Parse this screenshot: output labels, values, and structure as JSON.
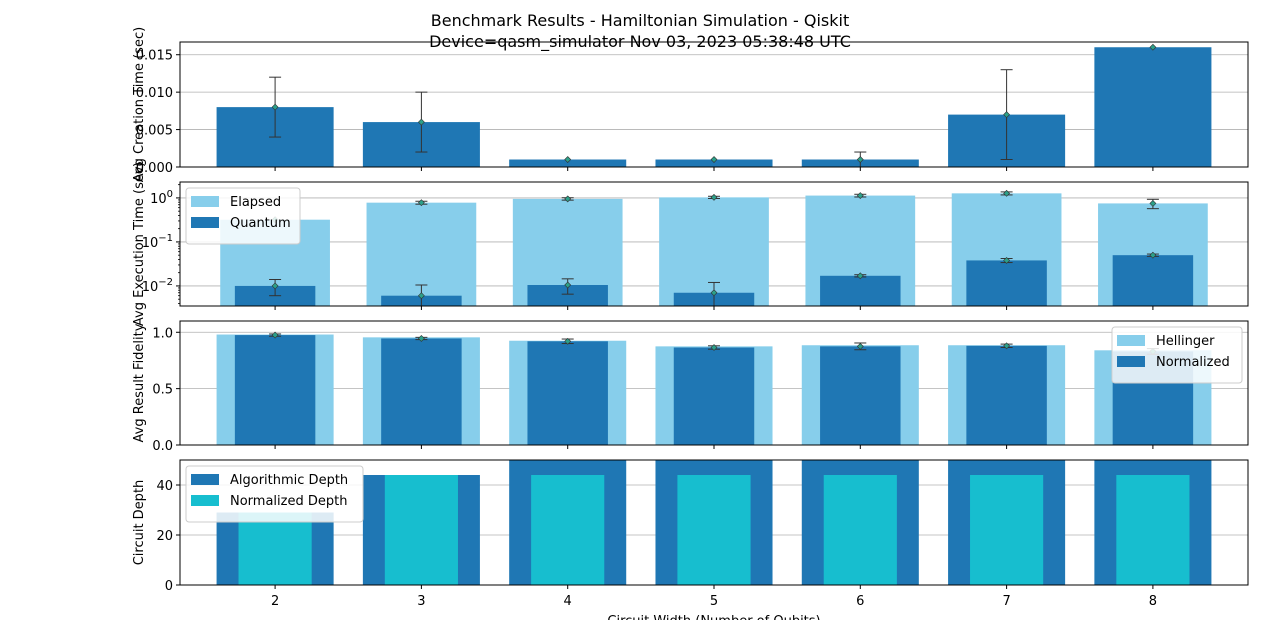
{
  "title": "Benchmark Results - Hamiltonian Simulation - Qiskit",
  "subtitle": "Device=qasm_simulator  Nov 03, 2023 05:38:48 UTC",
  "colors": {
    "dark_blue": "#1f77b4",
    "light_blue": "#87ceeb",
    "cyan": "#17becf",
    "grid": "#b0b0b0",
    "marker": "#2ca089"
  },
  "chart_data": [
    {
      "id": "creation",
      "type": "bar",
      "ylabel": "Avg Creation Time (sec)",
      "scale": "linear",
      "ylim": [
        0,
        0.0167
      ],
      "yticks": [
        0,
        0.005,
        0.01,
        0.015
      ],
      "ytick_labels": [
        "0.000",
        "0.005",
        "0.010",
        "0.015"
      ],
      "grid": true,
      "x": [
        2,
        3,
        4,
        5,
        6,
        7,
        8
      ],
      "series": [
        {
          "values": [
            0.008,
            0.006,
            0.001,
            0.001,
            0.001,
            0.007,
            0.016
          ],
          "err": [
            0.004,
            0.004,
            0.0,
            0.0,
            0.001,
            0.006,
            0.0
          ],
          "color": "#1f77b4",
          "width": 0.8
        }
      ]
    },
    {
      "id": "execution",
      "type": "bar",
      "ylabel": "Avg Execution Time (sec)",
      "scale": "log",
      "ylim": [
        0.0035,
        2.3
      ],
      "yticks": [
        0.01,
        0.1,
        1
      ],
      "ytick_labels": [
        [
          "10",
          "−2"
        ],
        [
          "10",
          "−1"
        ],
        [
          "10",
          "0"
        ]
      ],
      "grid": true,
      "legend": "top-left",
      "x": [
        2,
        3,
        4,
        5,
        6,
        7,
        8
      ],
      "series": [
        {
          "name": "Elapsed",
          "values": [
            0.32,
            0.78,
            0.95,
            1.03,
            1.13,
            1.27,
            0.75
          ],
          "err": [
            0.0,
            0.06,
            0.06,
            0.06,
            0.08,
            0.1,
            0.18
          ],
          "color": "#87ceeb",
          "width": 0.75
        },
        {
          "name": "Quantum",
          "values": [
            0.01,
            0.006,
            0.0105,
            0.007,
            0.017,
            0.038,
            0.05
          ],
          "err": [
            0.004,
            0.0045,
            0.004,
            0.005,
            0.001,
            0.004,
            0.003
          ],
          "color": "#1f77b4",
          "width": 0.55
        }
      ]
    },
    {
      "id": "fidelity",
      "type": "bar",
      "ylabel": "Avg Result Fidelity",
      "scale": "linear",
      "ylim": [
        0,
        1.1
      ],
      "yticks": [
        0,
        0.5,
        1.0
      ],
      "ytick_labels": [
        "0.0",
        "0.5",
        "1.0"
      ],
      "grid": true,
      "legend": "top-right",
      "x": [
        2,
        3,
        4,
        5,
        6,
        7,
        8
      ],
      "series": [
        {
          "name": "Hellinger",
          "values": [
            0.98,
            0.955,
            0.925,
            0.875,
            0.885,
            0.885,
            0.84
          ],
          "color": "#87ceeb",
          "width": 0.8
        },
        {
          "name": "Normalized",
          "values": [
            0.975,
            0.945,
            0.92,
            0.865,
            0.875,
            0.88,
            0.83
          ],
          "err": [
            0.01,
            0.01,
            0.02,
            0.015,
            0.03,
            0.015,
            0.025
          ],
          "color": "#1f77b4",
          "width": 0.55
        }
      ]
    },
    {
      "id": "depth",
      "type": "bar",
      "ylabel": "Circuit Depth",
      "xlabel": "Circuit Width (Number of Qubits)",
      "scale": "linear",
      "ylim": [
        0,
        50
      ],
      "yticks": [
        0,
        20,
        40
      ],
      "ytick_labels": [
        "0",
        "20",
        "40"
      ],
      "grid": true,
      "legend": "top-left",
      "x": [
        2,
        3,
        4,
        5,
        6,
        7,
        8
      ],
      "xtick_labels": [
        "2",
        "3",
        "4",
        "5",
        "6",
        "7",
        "8"
      ],
      "series": [
        {
          "name": "Algorithmic Depth",
          "values": [
            29,
            44,
            50,
            50,
            50,
            50,
            50
          ],
          "color": "#1f77b4",
          "width": 0.8
        },
        {
          "name": "Normalized Depth",
          "values": [
            29,
            44,
            44,
            44,
            44,
            44,
            44
          ],
          "color": "#17becf",
          "width": 0.5
        }
      ]
    }
  ]
}
